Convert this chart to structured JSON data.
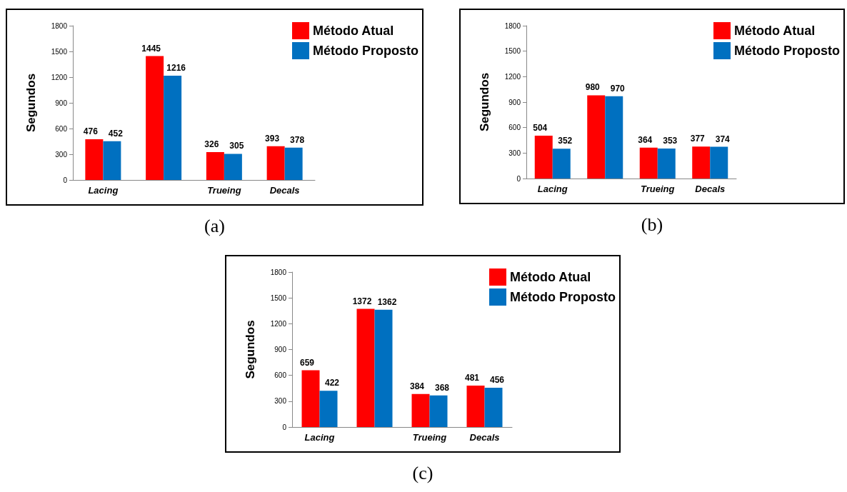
{
  "chart_data": [
    {
      "type": "bar",
      "ylabel": "Segundos",
      "categories": [
        "Lacing",
        null,
        "Trueing",
        "Decals"
      ],
      "series": [
        {
          "name": "Método Atual",
          "color": "#ff0000",
          "values": [
            476,
            1445,
            326,
            393
          ]
        },
        {
          "name": "Método Proposto",
          "color": "#0070c0",
          "values": [
            452,
            1216,
            305,
            378
          ]
        }
      ],
      "ylim": [
        0,
        1800
      ],
      "yticks": [
        0,
        300,
        600,
        900,
        1200,
        1500,
        1800
      ],
      "grid": false,
      "legend": "top right",
      "data_labels": true,
      "annotations": [
        "(a)"
      ]
    },
    {
      "type": "bar",
      "ylabel": "Segundos",
      "categories": [
        "Lacing",
        null,
        "Trueing",
        "Decals"
      ],
      "series": [
        {
          "name": "Método Atual",
          "color": "#ff0000",
          "values": [
            504,
            980,
            364,
            377
          ]
        },
        {
          "name": "Método Proposto",
          "color": "#0070c0",
          "values": [
            352,
            970,
            353,
            374
          ]
        }
      ],
      "ylim": [
        0,
        1800
      ],
      "yticks": [
        0,
        300,
        600,
        900,
        1200,
        1500,
        1800
      ],
      "grid": false,
      "legend": "top right",
      "data_labels": true,
      "annotations": [
        "(b)"
      ]
    },
    {
      "type": "bar",
      "ylabel": "Segundos",
      "categories": [
        "Lacing",
        null,
        "Trueing",
        "Decals"
      ],
      "series": [
        {
          "name": "Método Atual",
          "color": "#ff0000",
          "values": [
            659,
            1372,
            384,
            481
          ]
        },
        {
          "name": "Método Proposto",
          "color": "#0070c0",
          "values": [
            422,
            1362,
            368,
            456
          ]
        }
      ],
      "ylim": [
        0,
        1800
      ],
      "yticks": [
        0,
        300,
        600,
        900,
        1200,
        1500,
        1800
      ],
      "grid": false,
      "legend": "top right",
      "data_labels": true,
      "annotations": [
        "(c)"
      ]
    }
  ]
}
